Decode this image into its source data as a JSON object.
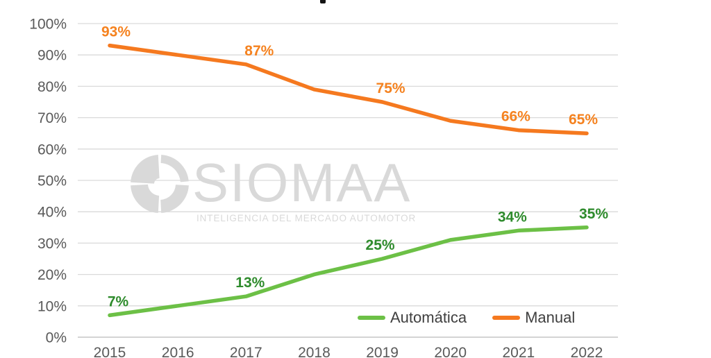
{
  "page": {
    "background": "#ffffff",
    "cropped_title_fragment": {
      "color": "#141414"
    }
  },
  "watermark": {
    "brand": "SIOMAA",
    "tagline": "INTELIGENCIA DEL MERCADO AUTOMOTOR",
    "color": "#d9d9d9"
  },
  "chart_data": {
    "type": "line",
    "title": "",
    "xlabel": "",
    "ylabel": "",
    "categories": [
      "2015",
      "2016",
      "2017",
      "2018",
      "2019",
      "2020",
      "2021",
      "2022"
    ],
    "series": [
      {
        "name": "Automática",
        "color": "#6cc046",
        "label_color": "#2e8b2c",
        "values": [
          7,
          10,
          13,
          20,
          25,
          31,
          34,
          35
        ],
        "point_labels": [
          "7%",
          null,
          "13%",
          null,
          "25%",
          null,
          "34%",
          "35%"
        ],
        "label_dx": [
          12,
          0,
          6,
          0,
          -3,
          0,
          -9,
          10
        ]
      },
      {
        "name": "Manual",
        "color": "#f5791f",
        "label_color": "#f5821f",
        "values": [
          93,
          90,
          87,
          79,
          75,
          69,
          66,
          65
        ],
        "point_labels": [
          "93%",
          null,
          "87%",
          null,
          "75%",
          null,
          "66%",
          "65%"
        ],
        "label_dx": [
          9,
          0,
          19,
          0,
          12,
          0,
          -4,
          -5
        ]
      }
    ],
    "ylim": [
      0,
      100
    ],
    "ytick_step": 10,
    "ytick_labels": [
      "0%",
      "10%",
      "20%",
      "30%",
      "40%",
      "50%",
      "60%",
      "70%",
      "80%",
      "90%",
      "100%"
    ],
    "grid": true,
    "legend": {
      "entries": [
        "Automática",
        "Manual"
      ],
      "position": "inside-bottom-right",
      "text_color": "#3f3f3f"
    },
    "style": {
      "gridline_color": "#d9d9d9",
      "axis_line_color": "#c6c6c6",
      "axis_text_color": "#595959"
    }
  }
}
